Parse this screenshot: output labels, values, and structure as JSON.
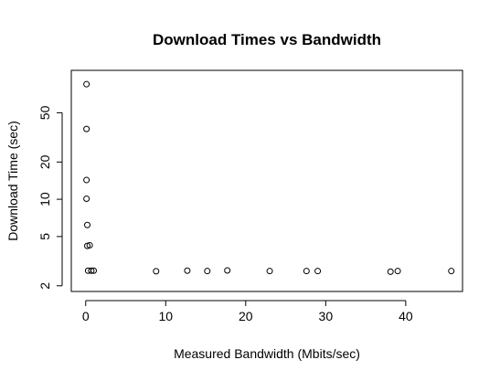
{
  "chart_data": {
    "type": "scatter",
    "title": "Download Times vs Bandwidth",
    "xlabel": "Measured Bandwidth (Mbits/sec)",
    "ylabel": "Download Time (sec)",
    "xlim": [
      -1.8,
      47.1
    ],
    "ylim": [
      1.8,
      110
    ],
    "y_scale": "log",
    "x_ticks": [
      0,
      10,
      20,
      30,
      40
    ],
    "x_tick_labels": [
      "0",
      "10",
      "20",
      "30",
      "40"
    ],
    "y_ticks": [
      2,
      5,
      10,
      20,
      50
    ],
    "y_tick_labels": [
      "2",
      "5",
      "10",
      "20",
      "50"
    ],
    "grid": false,
    "legend": "none",
    "marker": "open-circle",
    "marker_color": "#000000",
    "points": [
      {
        "x": 0.1,
        "y": 85
      },
      {
        "x": 0.1,
        "y": 37
      },
      {
        "x": 0.1,
        "y": 14.3
      },
      {
        "x": 0.1,
        "y": 10.1
      },
      {
        "x": 0.2,
        "y": 6.2
      },
      {
        "x": 0.2,
        "y": 4.2
      },
      {
        "x": 0.5,
        "y": 4.25
      },
      {
        "x": 0.3,
        "y": 2.65
      },
      {
        "x": 0.7,
        "y": 2.65
      },
      {
        "x": 1.0,
        "y": 2.65
      },
      {
        "x": 8.8,
        "y": 2.62
      },
      {
        "x": 12.7,
        "y": 2.65
      },
      {
        "x": 15.2,
        "y": 2.63
      },
      {
        "x": 17.7,
        "y": 2.66
      },
      {
        "x": 23.0,
        "y": 2.63
      },
      {
        "x": 27.6,
        "y": 2.63
      },
      {
        "x": 29.0,
        "y": 2.63
      },
      {
        "x": 38.1,
        "y": 2.6
      },
      {
        "x": 39.0,
        "y": 2.63
      },
      {
        "x": 45.7,
        "y": 2.63
      }
    ]
  }
}
